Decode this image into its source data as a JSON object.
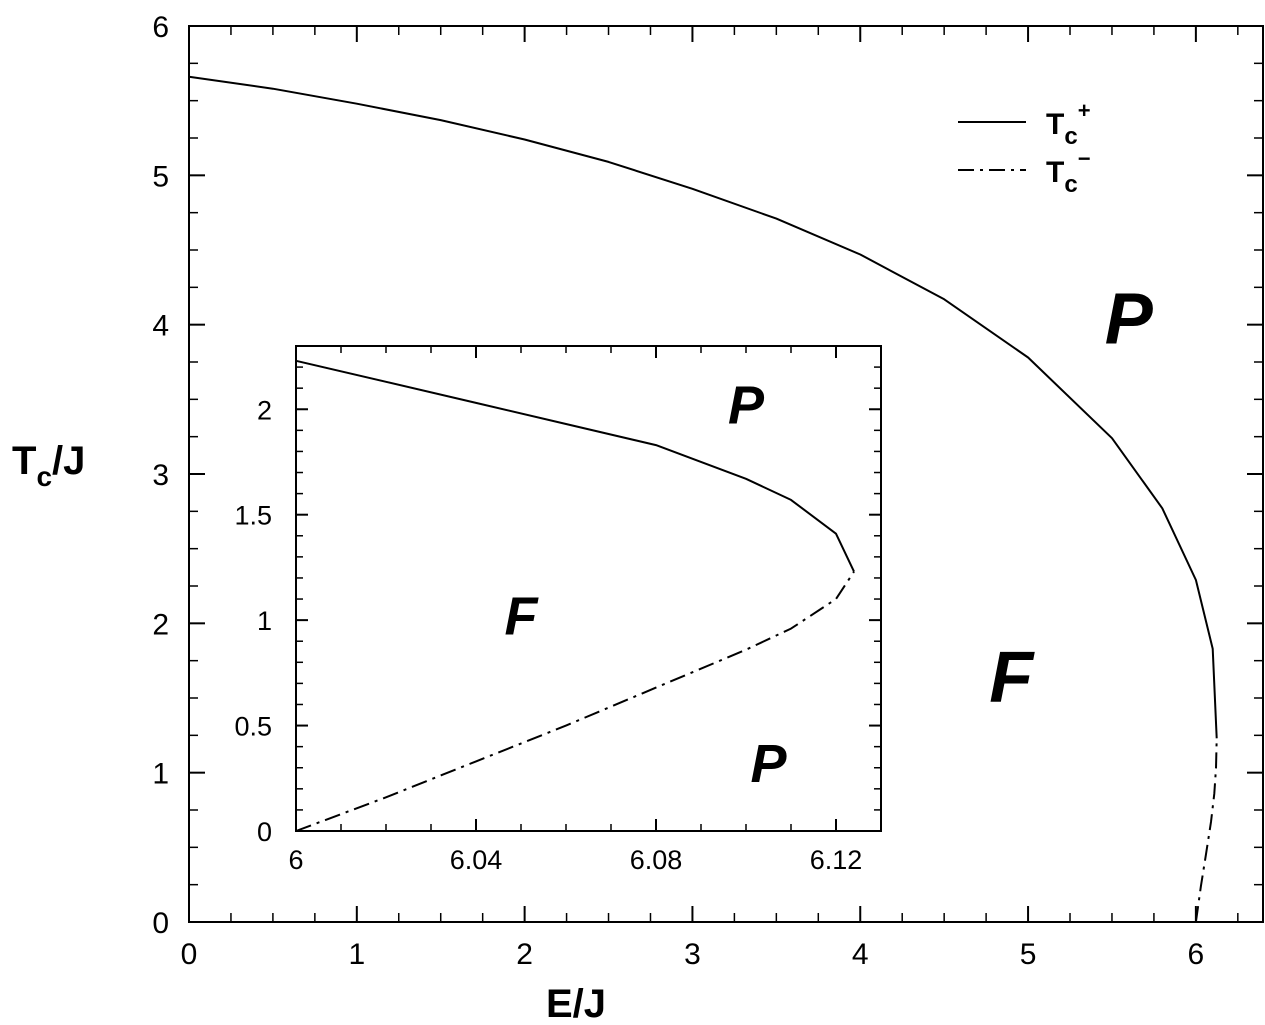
{
  "chart_data": [
    {
      "type": "line",
      "title": "",
      "xlabel": "E/J",
      "ylabel": {
        "main": "T",
        "sub": "c",
        "rest": "/J"
      },
      "xlim": [
        0,
        6.4
      ],
      "ylim": [
        0,
        6
      ],
      "xticks": [
        0,
        1,
        2,
        3,
        4,
        5,
        6
      ],
      "xtick_labels": [
        "0",
        "1",
        "2",
        "3",
        "4",
        "5",
        "6"
      ],
      "yticks": [
        0,
        1,
        2,
        3,
        4,
        5,
        6
      ],
      "ytick_labels": [
        "0",
        "1",
        "2",
        "3",
        "4",
        "5",
        "6"
      ],
      "grid": false,
      "legend_position": "top-right",
      "series": [
        {
          "legend": {
            "main": "T",
            "sub": "c",
            "sup": "+"
          },
          "style": "solid",
          "x": [
            0,
            0.5,
            1,
            1.5,
            2,
            2.5,
            3,
            3.5,
            4,
            4.5,
            5,
            5.5,
            5.8,
            6.0,
            6.1,
            6.124
          ],
          "y": [
            5.66,
            5.58,
            5.48,
            5.37,
            5.24,
            5.09,
            4.91,
            4.71,
            4.47,
            4.17,
            3.78,
            3.24,
            2.77,
            2.29,
            1.83,
            1.23
          ]
        },
        {
          "legend": {
            "main": "T",
            "sub": "c",
            "sup": "−"
          },
          "style": "dash-dot",
          "x": [
            6.0,
            6.03,
            6.06,
            6.09,
            6.11,
            6.12,
            6.124
          ],
          "y": [
            0.0,
            0.24,
            0.45,
            0.67,
            0.86,
            1.03,
            1.23
          ]
        }
      ],
      "annotations": [
        {
          "text": "P",
          "x": 5.6,
          "y": 4.0
        },
        {
          "text": "F",
          "x": 4.9,
          "y": 1.6
        }
      ]
    },
    {
      "type": "line",
      "title": "",
      "inset": true,
      "xlim": [
        6.0,
        6.13
      ],
      "ylim": [
        0,
        2.3
      ],
      "xticks": [
        6.0,
        6.04,
        6.08,
        6.12
      ],
      "xtick_labels": [
        "6",
        "6.04",
        "6.08",
        "6.12"
      ],
      "yticks": [
        0,
        0.5,
        1,
        1.5,
        2
      ],
      "ytick_labels": [
        "0",
        "0.5",
        "1",
        "1.5",
        "2"
      ],
      "series": [
        {
          "style": "solid",
          "x": [
            6.0,
            6.02,
            6.04,
            6.06,
            6.08,
            6.1,
            6.11,
            6.12,
            6.124
          ],
          "y": [
            2.23,
            2.13,
            2.03,
            1.93,
            1.83,
            1.67,
            1.57,
            1.41,
            1.23
          ]
        },
        {
          "style": "dash-dot",
          "x": [
            6.0,
            6.02,
            6.04,
            6.06,
            6.08,
            6.1,
            6.11,
            6.12,
            6.124
          ],
          "y": [
            0.0,
            0.16,
            0.33,
            0.5,
            0.68,
            0.86,
            0.96,
            1.1,
            1.23
          ]
        }
      ],
      "annotations": [
        {
          "text": "P",
          "x": 6.1,
          "y": 2.0
        },
        {
          "text": "F",
          "x": 6.05,
          "y": 1.0
        },
        {
          "text": "P",
          "x": 6.105,
          "y": 0.3
        }
      ]
    }
  ]
}
